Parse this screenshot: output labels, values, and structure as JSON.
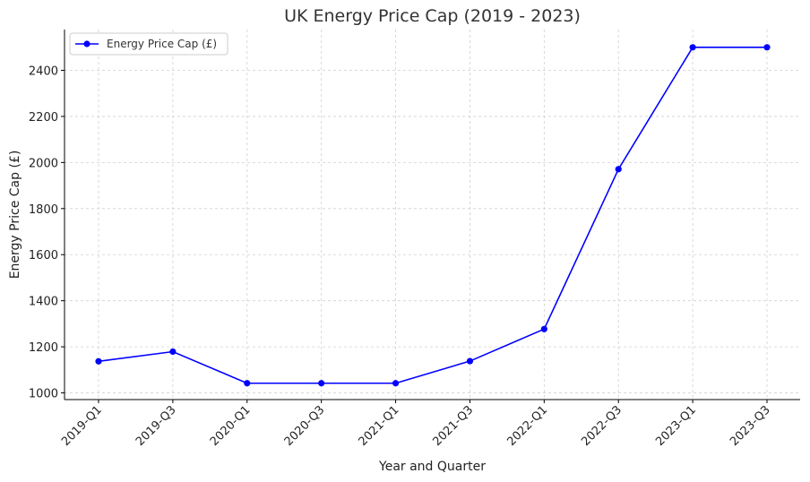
{
  "chart_data": {
    "type": "line",
    "title": "UK Energy Price Cap (2019 - 2023)",
    "xlabel": "Year and Quarter",
    "ylabel": "Energy Price Cap (£)",
    "categories": [
      "2019-Q1",
      "2019-Q3",
      "2020-Q1",
      "2020-Q3",
      "2021-Q1",
      "2021-Q3",
      "2022-Q1",
      "2022-Q3",
      "2023-Q1",
      "2023-Q3"
    ],
    "series": [
      {
        "name": "Energy Price Cap (£)",
        "color": "#0000ff",
        "values": [
          1137,
          1179,
          1042,
          1042,
          1042,
          1138,
          1277,
          1971,
          2500,
          2500
        ]
      }
    ],
    "yticks": [
      1000,
      1200,
      1400,
      1600,
      1800,
      2000,
      2200,
      2400
    ],
    "ylim": [
      971,
      2577
    ],
    "grid": true,
    "legend_position": "top-left"
  }
}
